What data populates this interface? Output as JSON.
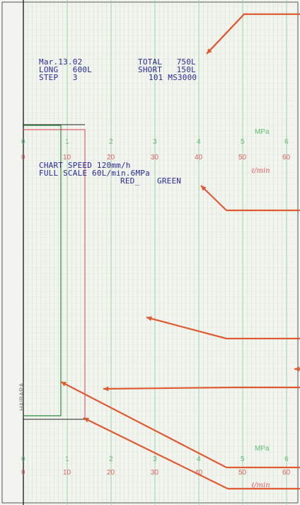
{
  "header": {
    "date": "Mar.13.02",
    "long": "LONG   600L",
    "step": "STEP   3",
    "total": "TOTAL   750L",
    "short": "SHORT   150L",
    "model": "101 MS3000"
  },
  "chart_info": {
    "speed": "CHART SPEED 120mm/h",
    "full_scale": "FULL SCALE 60L/min.6MPa",
    "red_label": "RED_",
    "green_label": "GREEN"
  },
  "scales": {
    "mpa_ticks": [
      "0",
      "1",
      "2",
      "3",
      "4",
      "5",
      "6"
    ],
    "flow_ticks": [
      "0",
      "10",
      "20",
      "30",
      "40",
      "50",
      "60"
    ],
    "mpa_unit": "MPa",
    "flow_unit": "ℓ/min"
  },
  "side_text": "HAIBARA",
  "colors": {
    "paper": "#f3f3ef",
    "grid_green": "#8fd39a",
    "red_trace": "#e06070",
    "green_trace": "#2e8c3e",
    "ink": "#2a2a9a",
    "arrow": "#e05a33"
  }
}
